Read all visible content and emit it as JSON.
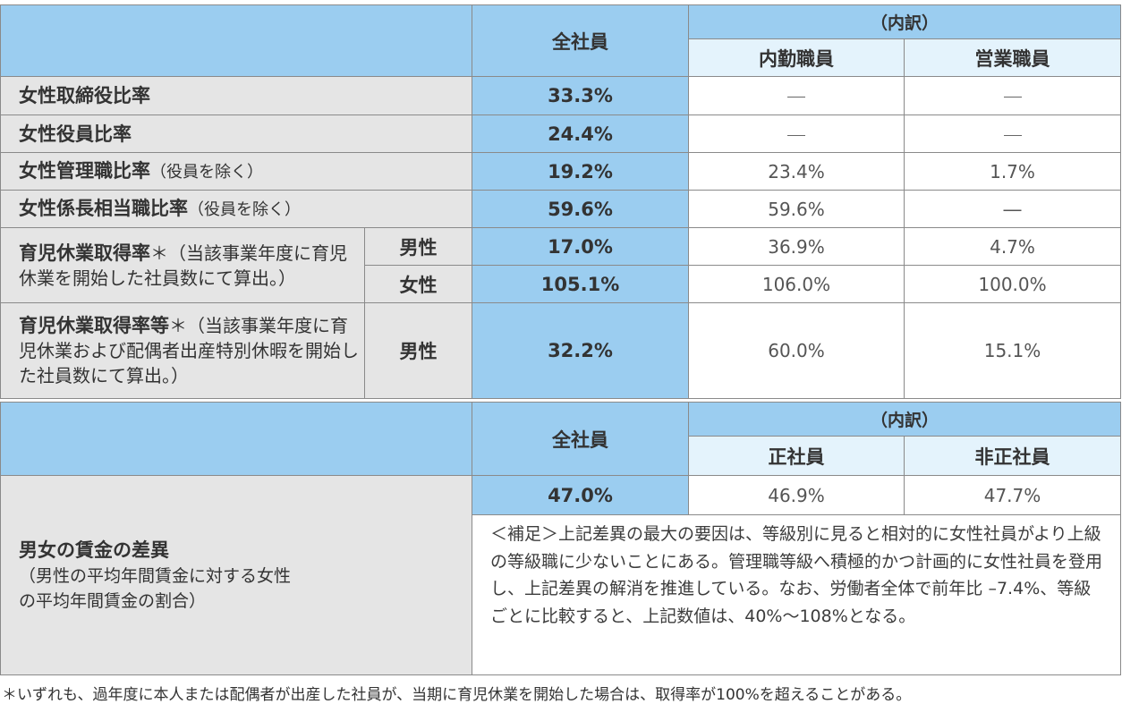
{
  "table1": {
    "header": {
      "all": "全社員",
      "breakdown": "（内訳）",
      "col_a": "内勤職員",
      "col_b": "営業職員"
    },
    "rows": [
      {
        "label": "女性取締役比率",
        "note": "",
        "all": "33.3%",
        "a": "―",
        "b": "―"
      },
      {
        "label": "女性役員比率",
        "note": "",
        "all": "24.4%",
        "a": "―",
        "b": "―"
      },
      {
        "label": "女性管理職比率",
        "note": "（役員を除く）",
        "all": "19.2%",
        "a": "23.4%",
        "b": "1.7%"
      },
      {
        "label": "女性係長相当職比率",
        "note": "（役員を除く）",
        "all": "59.6%",
        "a": "59.6%",
        "b": "―"
      }
    ],
    "childcare": {
      "label": "育児休業取得率",
      "note": "＊（当該事業年度に育児休業を開始した社員数にて算出。）",
      "male": {
        "sex": "男性",
        "all": "17.0%",
        "a": "36.9%",
        "b": "4.7%"
      },
      "female": {
        "sex": "女性",
        "all": "105.1%",
        "a": "106.0%",
        "b": "100.0%"
      }
    },
    "childcare2": {
      "label": "育児休業取得率等",
      "note": "＊（当該事業年度に育児休業および配偶者出産特別休暇を開始した社員数にて算出。）",
      "sex": "男性",
      "all": "32.2%",
      "a": "60.0%",
      "b": "15.1%"
    }
  },
  "table2": {
    "header": {
      "all": "全社員",
      "breakdown": "（内訳）",
      "col_a": "正社員",
      "col_b": "非正社員"
    },
    "label": "男女の賃金の差異",
    "sub": "（男性の平均年間賃金に対する女性の平均年間賃金の割合）",
    "all": "47.0%",
    "a": "46.9%",
    "b": "47.7%",
    "note": "＜補足＞上記差異の最大の要因は、等級別に見ると相対的に女性社員がより上級の等級職に少ないことにある。管理職等級へ積極的かつ計画的に女性社員を登用し、上記差異の解消を推進している。なお、労働者全体で前年比 –7.4%、等級ごとに比較すると、上記数値は、40%～108%となる。"
  },
  "footnote": "＊いずれも、過年度に本人または配偶者が出産した社員が、当期に育児休業を開始した場合は、取得率が100%を超えることがある。",
  "colors": {
    "header_blue": "#9bcdf0",
    "subheader_blue": "#e4f3fc",
    "label_gray": "#e5e5e5",
    "border": "#8a8a8a"
  }
}
